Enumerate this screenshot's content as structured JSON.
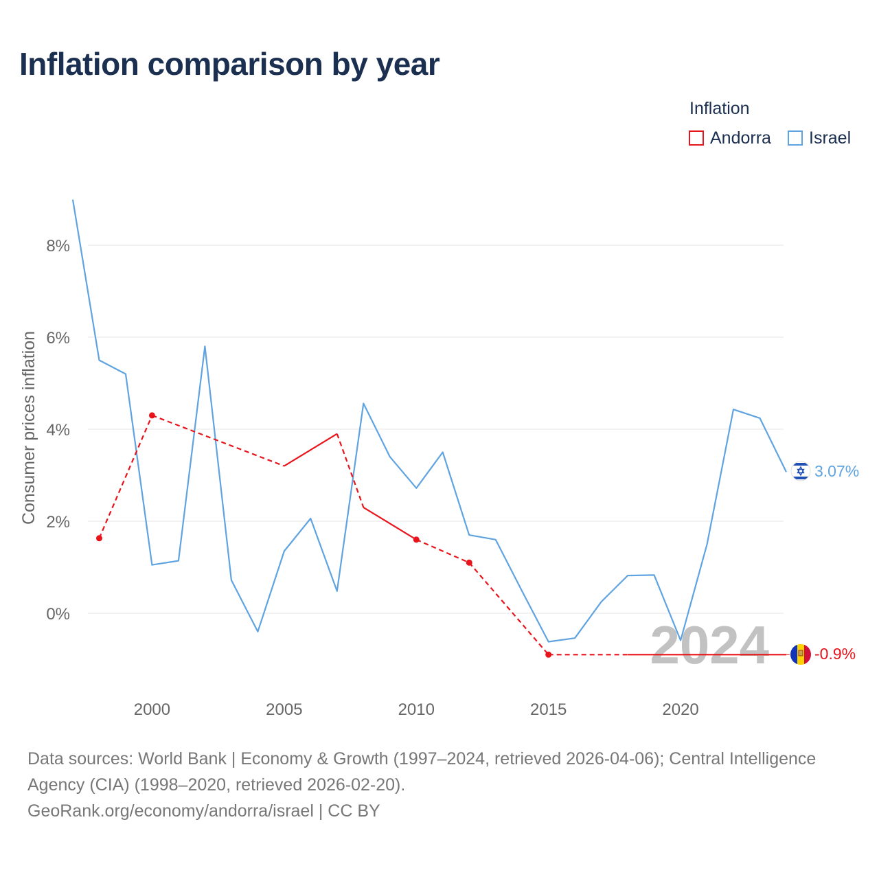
{
  "title": "Inflation comparison by year",
  "legend": {
    "title": "Inflation",
    "items": [
      {
        "name": "Andorra",
        "color": "#e8141b"
      },
      {
        "name": "Israel",
        "color": "#5fa3e0"
      }
    ]
  },
  "chart_data": {
    "type": "line",
    "title": "Inflation comparison by year",
    "xlabel": "",
    "ylabel": "Consumer prices inflation",
    "xlim": [
      1997,
      2024
    ],
    "ylim": [
      -1.5,
      9
    ],
    "x_ticks": [
      2000,
      2005,
      2010,
      2015,
      2020
    ],
    "y_ticks": [
      0,
      2,
      4,
      6,
      8
    ],
    "y_tick_labels": [
      "0%",
      "2%",
      "4%",
      "6%",
      "8%"
    ],
    "grid": true,
    "year_watermark": "2024",
    "series": [
      {
        "name": "Israel",
        "color": "#5fa3e0",
        "points": [
          [
            1997,
            8.99
          ],
          [
            1998,
            5.5
          ],
          [
            1999,
            5.2
          ],
          [
            2000,
            1.05
          ],
          [
            2001,
            1.14
          ],
          [
            2002,
            5.8
          ],
          [
            2003,
            0.72
          ],
          [
            2004,
            -0.4
          ],
          [
            2005,
            1.35
          ],
          [
            2006,
            2.06
          ],
          [
            2007,
            0.48
          ],
          [
            2008,
            4.56
          ],
          [
            2009,
            3.4
          ],
          [
            2010,
            2.72
          ],
          [
            2011,
            3.5
          ],
          [
            2012,
            1.7
          ],
          [
            2013,
            1.6
          ],
          [
            2014,
            0.48
          ],
          [
            2015,
            -0.62
          ],
          [
            2016,
            -0.54
          ],
          [
            2017,
            0.25
          ],
          [
            2018,
            0.82
          ],
          [
            2019,
            0.83
          ],
          [
            2020,
            -0.59
          ],
          [
            2021,
            1.5
          ],
          [
            2022,
            4.43
          ],
          [
            2023,
            4.24
          ],
          [
            2024,
            3.07
          ]
        ],
        "end_label": "3.07%"
      },
      {
        "name": "Andorra",
        "color": "#e8141b",
        "points": [
          [
            1998,
            1.63
          ],
          [
            2000,
            4.3
          ],
          [
            2005,
            3.2
          ],
          [
            2007,
            3.9
          ],
          [
            2008,
            2.3
          ],
          [
            2010,
            1.6
          ],
          [
            2012,
            1.1
          ],
          [
            2015,
            -0.9
          ],
          [
            2018,
            -0.9
          ],
          [
            2024,
            -0.9
          ]
        ],
        "dashed_segments_after_index": [
          0,
          1,
          3,
          5,
          6,
          7
        ],
        "marked_points_index": [
          0,
          1,
          5,
          6,
          7
        ],
        "end_label": "-0.9%"
      }
    ]
  },
  "footer": {
    "sources": "Data sources: World Bank | Economy & Growth (1997–2024, retrieved 2026-04-06); Central Intelligence Agency (CIA) (1998–2020, retrieved 2026-02-20).",
    "credit": "GeoRank.org/economy/andorra/israel | CC BY"
  }
}
